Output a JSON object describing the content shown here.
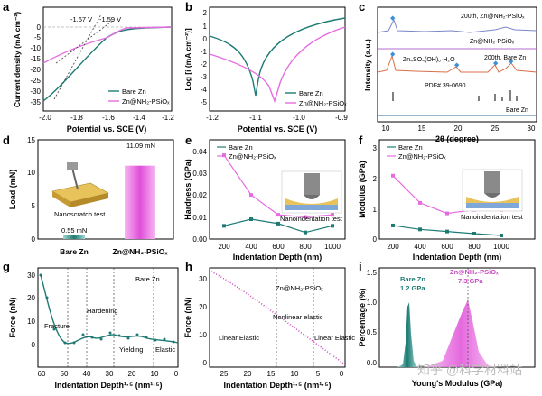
{
  "panels": {
    "a": {
      "letter": "a",
      "ylabel": "Current density (mA cm⁻²)",
      "xlabel": "Potential vs. SCE (V)",
      "xticks": [
        "-2.0",
        "-1.8",
        "-1.6",
        "-1.4",
        "-1.2"
      ],
      "yticks": [
        "0",
        "-5",
        "-10",
        "-15",
        "-20",
        "-25",
        "-30",
        "-35"
      ],
      "annot1": "-1.67 V",
      "annot2": "-1.59 V",
      "legend": [
        "Bare Zn",
        "Zn@NH₂-PSiOₓ"
      ]
    },
    "b": {
      "letter": "b",
      "ylabel": "Log [i (mA cm⁻²)]",
      "xlabel": "Potential vs. SCE (V)",
      "xticks": [
        "-1.2",
        "-1.1",
        "-1.0",
        "-0.9"
      ],
      "yticks": [
        "2",
        "1",
        "0",
        "-1",
        "-2",
        "-3",
        "-4",
        "-5"
      ],
      "legend": [
        "Bare Zn",
        "Zn@NH₂-PSiOₓ"
      ]
    },
    "c": {
      "letter": "c",
      "ylabel": "Intensity (a.u.)",
      "xlabel": "2θ (degree)",
      "xticks": [
        "10",
        "15",
        "20",
        "25",
        "30"
      ],
      "label1": "200th, Zn@NH₂-PSiOₓ",
      "label2": "Zn@NH₂-PSiOₓ",
      "label3": "200th, Bare Zn",
      "label4": "Zn₄SO₄(OH)₆·H₂O",
      "label5": "PDF# 39-0690",
      "label6": "Bare Zn"
    },
    "d": {
      "letter": "d",
      "ylabel": "Load (mN)",
      "yticks": [
        "0",
        "5",
        "10",
        "15"
      ],
      "categories": [
        "Bare Zn",
        "Zn@NH₂-PSiOₓ"
      ],
      "value_labels": [
        "0.55 mN",
        "11.09 mN"
      ],
      "inset_label": "Nanoscratch test"
    },
    "e": {
      "letter": "e",
      "ylabel": "Hardness (GPa)",
      "xlabel": "Indentation Depth (nm)",
      "xticks": [
        "200",
        "400",
        "600",
        "800",
        "1000"
      ],
      "yticks": [
        "0.00",
        "0.01",
        "0.02",
        "0.03",
        "0.04"
      ],
      "legend": [
        "Bare Zn",
        "Zn@NH₂-PSiOₓ"
      ],
      "inset_label": "Nanoindentation test"
    },
    "f": {
      "letter": "f",
      "ylabel": "Modulus (GPa)",
      "xlabel": "Indentation Depth (nm)",
      "xticks": [
        "200",
        "400",
        "600",
        "800",
        "1000"
      ],
      "yticks": [
        "0",
        "1",
        "2",
        "3"
      ],
      "legend": [
        "Bare Zn",
        "Zn@NH₂-PSiOₓ"
      ],
      "inset_label": "Nanoindentation test"
    },
    "g": {
      "letter": "g",
      "ylabel": "Force (nN)",
      "xlabel": "Indentation Depth¹·⁵ (nm¹·⁵)",
      "xticks": [
        "60",
        "50",
        "40",
        "30",
        "20",
        "10",
        "0"
      ],
      "yticks": [
        "0",
        "10",
        "20",
        "30"
      ],
      "title": "Bare Zn",
      "regions": [
        "Fracture",
        "Hardening",
        "Yielding",
        "Elastic"
      ]
    },
    "h": {
      "letter": "h",
      "ylabel": "Force (nN)",
      "xlabel": "Indentation Depth¹·⁵ (nm¹·⁵)",
      "xticks": [
        "25",
        "20",
        "15",
        "10",
        "5",
        "0"
      ],
      "yticks": [
        "0",
        "10",
        "20",
        "30"
      ],
      "title": "Zn@NH₂-PSiOₓ",
      "regions": [
        "Linear Elastic",
        "Nonlinear elastic",
        "Linear Elastic"
      ]
    },
    "i": {
      "letter": "i",
      "ylabel": "Percentage (%)",
      "xlabel": "Young's Modulus (GPa)",
      "yticks": [
        "0.0",
        "0.5",
        "1.0",
        "1.5"
      ],
      "peak1_name": "Bare Zn",
      "peak1_value": "1.2 GPa",
      "peak2_name": "Zn@NH₂-PSiOₓ",
      "peak2_value": "7.3 GPa",
      "watermark": "知乎 @科学材料站"
    }
  },
  "colors": {
    "teal": "#1e7b74",
    "magenta": "#e66be0",
    "pink_bar": "#f59ef0"
  },
  "chart_data": [
    {
      "type": "bar",
      "title": "",
      "categories": [
        "Bare Zn",
        "Zn@NH₂-PSiOₓ"
      ],
      "values": [
        0.55,
        11.09
      ],
      "ylabel": "Load (mN)",
      "ylim": [
        0,
        15
      ]
    },
    {
      "type": "line",
      "ylabel": "Hardness (GPa)",
      "xlabel": "Indentation Depth (nm)",
      "x": [
        200,
        400,
        600,
        800,
        1000
      ],
      "ylim": [
        0,
        0.045
      ],
      "series": [
        {
          "name": "Bare Zn",
          "values": [
            0.006,
            0.009,
            0.007,
            0.003,
            0.006
          ]
        },
        {
          "name": "Zn@NH₂-PSiOₓ",
          "values": [
            0.038,
            0.02,
            0.011,
            0.01,
            0.011
          ]
        }
      ]
    },
    {
      "type": "line",
      "ylabel": "Modulus (GPa)",
      "xlabel": "Indentation Depth (nm)",
      "x": [
        200,
        400,
        600,
        800,
        1000
      ],
      "ylim": [
        0,
        3.2
      ],
      "series": [
        {
          "name": "Bare Zn",
          "values": [
            0.45,
            0.32,
            0.25,
            0.18,
            0.12
          ]
        },
        {
          "name": "Zn@NH₂-PSiOₓ",
          "values": [
            2.1,
            1.2,
            0.85,
            0.97,
            0.97
          ]
        }
      ]
    }
  ]
}
